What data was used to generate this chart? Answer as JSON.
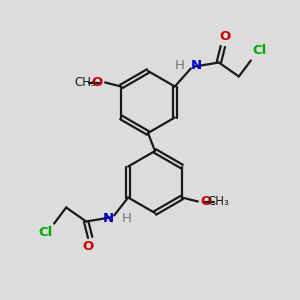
{
  "bg_color": "#dcdcdc",
  "bond_color": "#1a1a1a",
  "line_width": 1.6,
  "atom_colors": {
    "O": "#cc0000",
    "N": "#0000cc",
    "Cl": "#00aa00",
    "C": "#1a1a1a",
    "H": "#777777"
  },
  "font_size": 9.5,
  "fig_size": [
    3.0,
    3.0
  ],
  "dpi": 100
}
